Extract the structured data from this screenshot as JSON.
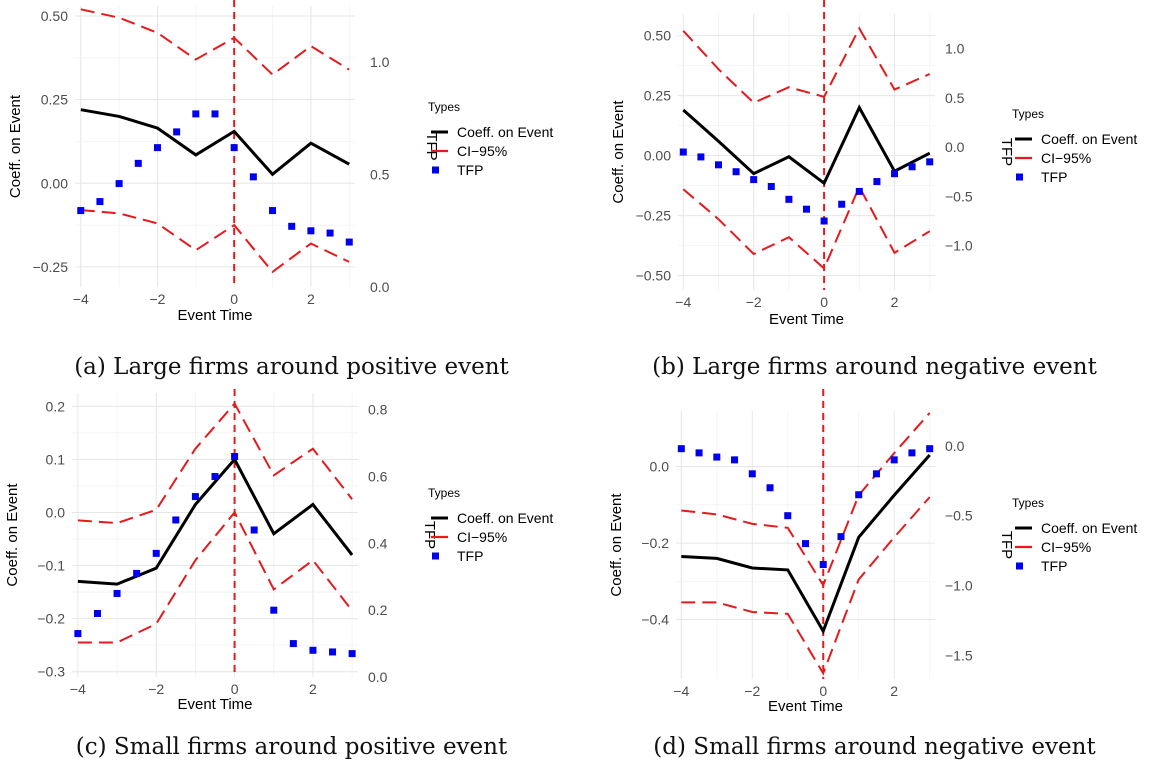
{
  "chart_data": [
    {
      "type": "line",
      "caption": "(a) Large firms around positive event",
      "xlabel": "Event Time",
      "ylabel": "Coeff. on Event",
      "y2label": "TFP",
      "legend_title": "Types",
      "legend_position": "right",
      "grid": true,
      "xlim": [
        -4.15,
        3.15
      ],
      "ylim": [
        -0.31,
        0.53
      ],
      "y2lim": [
        0.0,
        1.25
      ],
      "xticks": [
        -4,
        -2,
        0,
        2
      ],
      "yticks": [
        -0.25,
        0.0,
        0.25,
        0.5
      ],
      "ytick_labels": [
        "−0.25",
        "0.00",
        "0.25",
        "0.50"
      ],
      "y2ticks": [
        0.0,
        0.5,
        1.0
      ],
      "y2tick_labels": [
        "0.0",
        "0.5",
        "1.0"
      ],
      "xtick_labels": [
        "−4",
        "−2",
        "0",
        "2"
      ],
      "event_line_x": 0,
      "x": [
        -4,
        -3,
        -2,
        -1,
        0,
        1,
        2,
        3
      ],
      "series": [
        {
          "name": "Coeff. on Event",
          "style": "solid",
          "color": "#000000",
          "values": [
            0.22,
            0.2,
            0.165,
            0.085,
            0.155,
            0.027,
            0.12,
            0.057
          ]
        },
        {
          "name": "CI−95%",
          "style": "dashed",
          "color": "#e41a1c",
          "upper": [
            0.52,
            0.495,
            0.45,
            0.37,
            0.435,
            0.325,
            0.41,
            0.34
          ],
          "lower": [
            -0.08,
            -0.09,
            -0.12,
            -0.2,
            -0.125,
            -0.265,
            -0.18,
            -0.235
          ]
        },
        {
          "name": "TFP",
          "style": "dotted",
          "color": "#0000ee",
          "axis": "right",
          "values": [
            0.34,
            0.38,
            0.46,
            0.55,
            0.62,
            0.69,
            0.77,
            0.77,
            0.62,
            0.49,
            0.34,
            0.27,
            0.25,
            0.24,
            0.2
          ],
          "x": [
            -4,
            -3.5,
            -3,
            -2.5,
            -2,
            -1.5,
            -1,
            -0.5,
            0,
            0.5,
            1,
            1.5,
            2,
            2.5,
            3
          ]
        }
      ]
    },
    {
      "type": "line",
      "caption": "(b) Large firms around negative event",
      "xlabel": "Event Time",
      "ylabel": "Coeff. on Event",
      "y2label": "TFP",
      "legend_title": "Types",
      "legend_position": "right",
      "grid": true,
      "xlim": [
        -4.15,
        3.15
      ],
      "ylim": [
        -0.56,
        0.59
      ],
      "y2lim": [
        -1.45,
        1.35
      ],
      "xticks": [
        -4,
        -2,
        0,
        2
      ],
      "yticks": [
        -0.5,
        -0.25,
        0.0,
        0.25,
        0.5
      ],
      "ytick_labels": [
        "−0.50",
        "−0.25",
        "0.00",
        "0.25",
        "0.50"
      ],
      "y2ticks": [
        -1.0,
        -0.5,
        0.0,
        0.5,
        1.0
      ],
      "y2tick_labels": [
        "−1.0",
        "−0.5",
        "0.0",
        "0.5",
        "1.0"
      ],
      "xtick_labels": [
        "−4",
        "−2",
        "0",
        "2"
      ],
      "event_line_x": 0,
      "x": [
        -4,
        -3,
        -2,
        -1,
        0,
        1,
        2,
        3
      ],
      "series": [
        {
          "name": "Coeff. on Event",
          "style": "solid",
          "color": "#000000",
          "values": [
            0.19,
            0.06,
            -0.075,
            -0.005,
            -0.115,
            0.2,
            -0.065,
            0.01
          ]
        },
        {
          "name": "CI−95%",
          "style": "dashed",
          "color": "#e41a1c",
          "upper": [
            0.52,
            0.36,
            0.22,
            0.285,
            0.245,
            0.53,
            0.275,
            0.34
          ],
          "lower": [
            -0.14,
            -0.265,
            -0.41,
            -0.34,
            -0.47,
            -0.13,
            -0.405,
            -0.315
          ]
        },
        {
          "name": "TFP",
          "style": "dotted",
          "color": "#0000ee",
          "axis": "right",
          "values": [
            -0.05,
            -0.1,
            -0.18,
            -0.25,
            -0.33,
            -0.4,
            -0.53,
            -0.63,
            -0.75,
            -0.58,
            -0.45,
            -0.35,
            -0.27,
            -0.2,
            -0.15
          ],
          "x": [
            -4,
            -3.5,
            -3,
            -2.5,
            -2,
            -1.5,
            -1,
            -0.5,
            0,
            0.5,
            1,
            1.5,
            2,
            2.5,
            3
          ]
        }
      ]
    },
    {
      "type": "line",
      "caption": "(c) Small firms around positive event",
      "xlabel": "Event Time",
      "ylabel": "Coeff. on Event",
      "y2label": "TFP",
      "legend_title": "Types",
      "legend_position": "right",
      "grid": true,
      "xlim": [
        -4.15,
        3.15
      ],
      "ylim": [
        -0.31,
        0.225
      ],
      "y2lim": [
        0.0,
        0.85
      ],
      "xticks": [
        -4,
        -2,
        0,
        2
      ],
      "yticks": [
        -0.3,
        -0.2,
        -0.1,
        0.0,
        0.1,
        0.2
      ],
      "ytick_labels": [
        "−0.3",
        "−0.2",
        "−0.1",
        "0.0",
        "0.1",
        "0.2"
      ],
      "y2ticks": [
        0.0,
        0.2,
        0.4,
        0.6,
        0.8
      ],
      "y2tick_labels": [
        "0.0",
        "0.2",
        "0.4",
        "0.6",
        "0.8"
      ],
      "xtick_labels": [
        "−4",
        "−2",
        "0",
        "2"
      ],
      "event_line_x": 0,
      "x": [
        -4,
        -3,
        -2,
        -1,
        0,
        1,
        2,
        3
      ],
      "series": [
        {
          "name": "Coeff. on Event",
          "style": "solid",
          "color": "#000000",
          "values": [
            -0.13,
            -0.135,
            -0.105,
            0.015,
            0.1,
            -0.04,
            0.015,
            -0.08
          ]
        },
        {
          "name": "CI−95%",
          "style": "dashed",
          "color": "#e41a1c",
          "upper": [
            -0.015,
            -0.02,
            0.005,
            0.12,
            0.205,
            0.07,
            0.12,
            0.025
          ],
          "lower": [
            -0.245,
            -0.245,
            -0.21,
            -0.09,
            0.0,
            -0.145,
            -0.09,
            -0.185
          ]
        },
        {
          "name": "TFP",
          "style": "dotted",
          "color": "#0000ee",
          "axis": "right",
          "values": [
            0.13,
            0.19,
            0.25,
            0.31,
            0.37,
            0.47,
            0.54,
            0.6,
            0.66,
            0.44,
            0.2,
            0.1,
            0.08,
            0.075,
            0.07
          ],
          "x": [
            -4,
            -3.5,
            -3,
            -2.5,
            -2,
            -1.5,
            -1,
            -0.5,
            0,
            0.5,
            1,
            1.5,
            2,
            2.5,
            3
          ]
        }
      ]
    },
    {
      "type": "line",
      "caption": "(d) Small firms around negative event",
      "xlabel": "Event Time",
      "ylabel": "Coeff. on Event",
      "y2label": "TFP",
      "legend_title": "Types",
      "legend_position": "right",
      "grid": true,
      "xlim": [
        -4.15,
        3.15
      ],
      "ylim": [
        -0.555,
        0.145
      ],
      "y2lim": [
        -1.67,
        0.25
      ],
      "xticks": [
        -4,
        -2,
        0,
        2
      ],
      "yticks": [
        -0.4,
        -0.2,
        0.0
      ],
      "ytick_labels": [
        "−0.4",
        "−0.2",
        "0.0"
      ],
      "y2ticks": [
        -1.5,
        -1.0,
        -0.5,
        0.0
      ],
      "y2tick_labels": [
        "−1.5",
        "−1.0",
        "−0.5",
        "0.0"
      ],
      "xtick_labels": [
        "−4",
        "−2",
        "0",
        "2"
      ],
      "event_line_x": 0,
      "x": [
        -4,
        -3,
        -2,
        -1,
        0,
        1,
        2,
        3
      ],
      "series": [
        {
          "name": "Coeff. on Event",
          "style": "solid",
          "color": "#000000",
          "values": [
            -0.235,
            -0.24,
            -0.265,
            -0.27,
            -0.43,
            -0.185,
            -0.075,
            0.03
          ]
        },
        {
          "name": "CI−95%",
          "style": "dashed",
          "color": "#e41a1c",
          "upper": [
            -0.115,
            -0.125,
            -0.15,
            -0.16,
            -0.31,
            -0.075,
            0.035,
            0.14
          ],
          "lower": [
            -0.355,
            -0.355,
            -0.38,
            -0.385,
            -0.54,
            -0.295,
            -0.185,
            -0.08
          ]
        },
        {
          "name": "TFP",
          "style": "dotted",
          "color": "#0000ee",
          "axis": "right",
          "values": [
            -0.02,
            -0.05,
            -0.08,
            -0.1,
            -0.2,
            -0.3,
            -0.5,
            -0.7,
            -0.85,
            -0.65,
            -0.35,
            -0.2,
            -0.1,
            -0.05,
            -0.02
          ],
          "x": [
            -4,
            -3.5,
            -3,
            -2.5,
            -2,
            -1.5,
            -1,
            -0.5,
            0,
            0.5,
            1,
            1.5,
            2,
            2.5,
            3
          ]
        }
      ]
    }
  ]
}
